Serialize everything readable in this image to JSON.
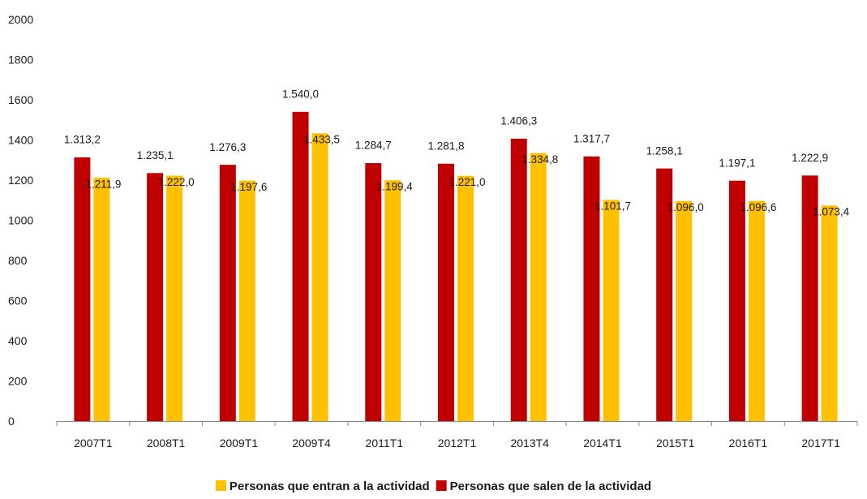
{
  "chart_data": {
    "type": "bar",
    "categories": [
      "2007T1",
      "2008T1",
      "2009T1",
      "2009T4",
      "2011T1",
      "2012T1",
      "2013T4",
      "2014T1",
      "2015T1",
      "2016T1",
      "2017T1"
    ],
    "series": [
      {
        "name": "Personas que salen de la actividad",
        "color": "#c00000",
        "values": [
          1313.2,
          1235.1,
          1276.3,
          1540.0,
          1284.7,
          1281.8,
          1406.3,
          1317.7,
          1258.1,
          1197.1,
          1222.9
        ],
        "labels": [
          "1.313,2",
          "1.235,1",
          "1.276,3",
          "1.540,0",
          "1.284,7",
          "1.281,8",
          "1.406,3",
          "1.317,7",
          "1.258,1",
          "1.197,1",
          "1.222,9"
        ]
      },
      {
        "name": "Personas que entran a la actividad",
        "color": "#ffc000",
        "values": [
          1211.9,
          1222.0,
          1197.6,
          1433.5,
          1199.4,
          1221.0,
          1334.8,
          1101.7,
          1096.0,
          1096.6,
          1073.4
        ],
        "labels": [
          "1.211,9",
          "1.222,0",
          "1.197,6",
          "1.433,5",
          "1.199,4",
          "1.221,0",
          "1.334,8",
          "1.101,7",
          "1.096,0",
          "1.096,6",
          "1.073,4"
        ]
      }
    ],
    "yticks": [
      "0",
      "200",
      "400",
      "600",
      "800",
      "1000",
      "1200",
      "1400",
      "1600",
      "1800",
      "2000"
    ],
    "ylim": [
      0,
      2000
    ],
    "title": "",
    "xlabel": "",
    "ylabel": "",
    "grid": false,
    "legend_position": "bottom-center",
    "legend": [
      {
        "name": "Personas que entran a la actividad",
        "color": "#ffc000"
      },
      {
        "name": "Personas que salen de la actividad",
        "color": "#c00000"
      }
    ]
  }
}
